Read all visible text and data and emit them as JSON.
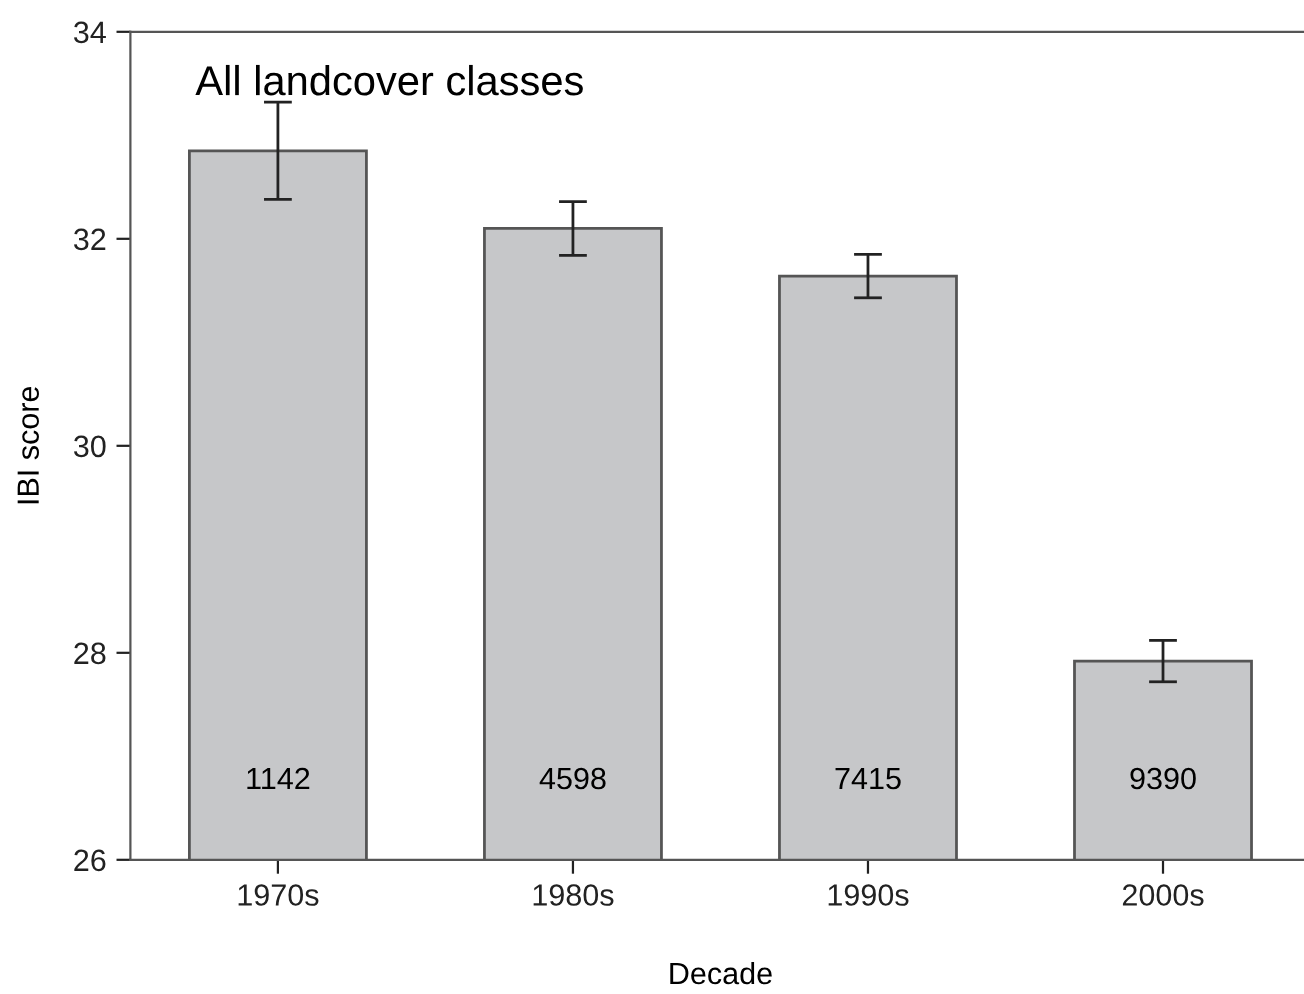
{
  "chart_data": {
    "type": "bar",
    "title": "All landcover classes",
    "xlabel": "Decade",
    "ylabel": "IBI score",
    "categories": [
      "1970s",
      "1980s",
      "1990s",
      "2000s"
    ],
    "values": [
      32.85,
      32.1,
      31.64,
      27.92
    ],
    "errors": [
      0.47,
      0.26,
      0.21,
      0.2
    ],
    "color": "#c6c7c9",
    "ylim": [
      26,
      34
    ],
    "yticks": [
      26,
      28,
      30,
      32,
      34
    ],
    "grid": false,
    "legend": false,
    "annotations": [
      "1142",
      "4598",
      "7415",
      "9390"
    ]
  }
}
